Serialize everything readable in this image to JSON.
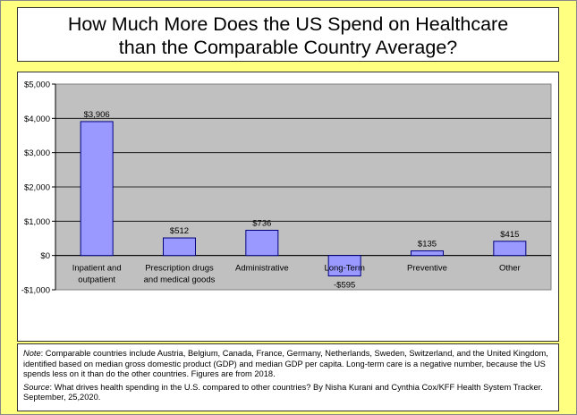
{
  "title": "How Much More Does the US Spend on Healthcare\nthan the Comparable Country Average?",
  "note": {
    "label": "Note",
    "text": ": Comparable countries include Austria, Belgium, Canada, France, Germany, Netherlands, Sweden, Switzerland, and the United Kingdom, identified based on median gross domestic product (GDP) and median GDP per capita. Long-term care is a negative number, because the US spends less on it than do the other countries. Figures are from 2018."
  },
  "source": {
    "label": "Source",
    "text": ": What drives health spending in the U.S. compared to other countries? By Nisha Kurani and Cynthia Cox/KFF Health System Tracker.  September, 25,2020."
  },
  "chart_data": {
    "type": "bar",
    "title": "",
    "xlabel": "",
    "ylabel": "",
    "categories": [
      "Inpatient and outpatient",
      "Prescription drugs and medical goods",
      "Administrative",
      "Long-Term",
      "Preventive",
      "Other"
    ],
    "category_lines": [
      [
        "Inpatient and",
        "outpatient"
      ],
      [
        "Prescription drugs",
        "and medical goods"
      ],
      [
        "Administrative"
      ],
      [
        "Long-Term"
      ],
      [
        "Preventive"
      ],
      [
        "Other"
      ]
    ],
    "values": [
      3906,
      512,
      736,
      -595,
      135,
      415
    ],
    "data_labels": [
      "$3,906",
      "$512",
      "$736",
      "-$595",
      "$135",
      "$415"
    ],
    "y_ticks": [
      -1000,
      0,
      1000,
      2000,
      3000,
      4000,
      5000
    ],
    "y_tick_labels": [
      "-$1,000",
      "$0",
      "$1,000",
      "$2,000",
      "$3,000",
      "$4,000",
      "$5,000"
    ],
    "ylim": [
      -1000,
      5000
    ],
    "grid": true,
    "legend": "none",
    "colors": {
      "bar_fill": "#9999ff",
      "bar_stroke": "#000080",
      "plot_background": "#c0c0c0",
      "page_background": "#ffff80"
    }
  }
}
